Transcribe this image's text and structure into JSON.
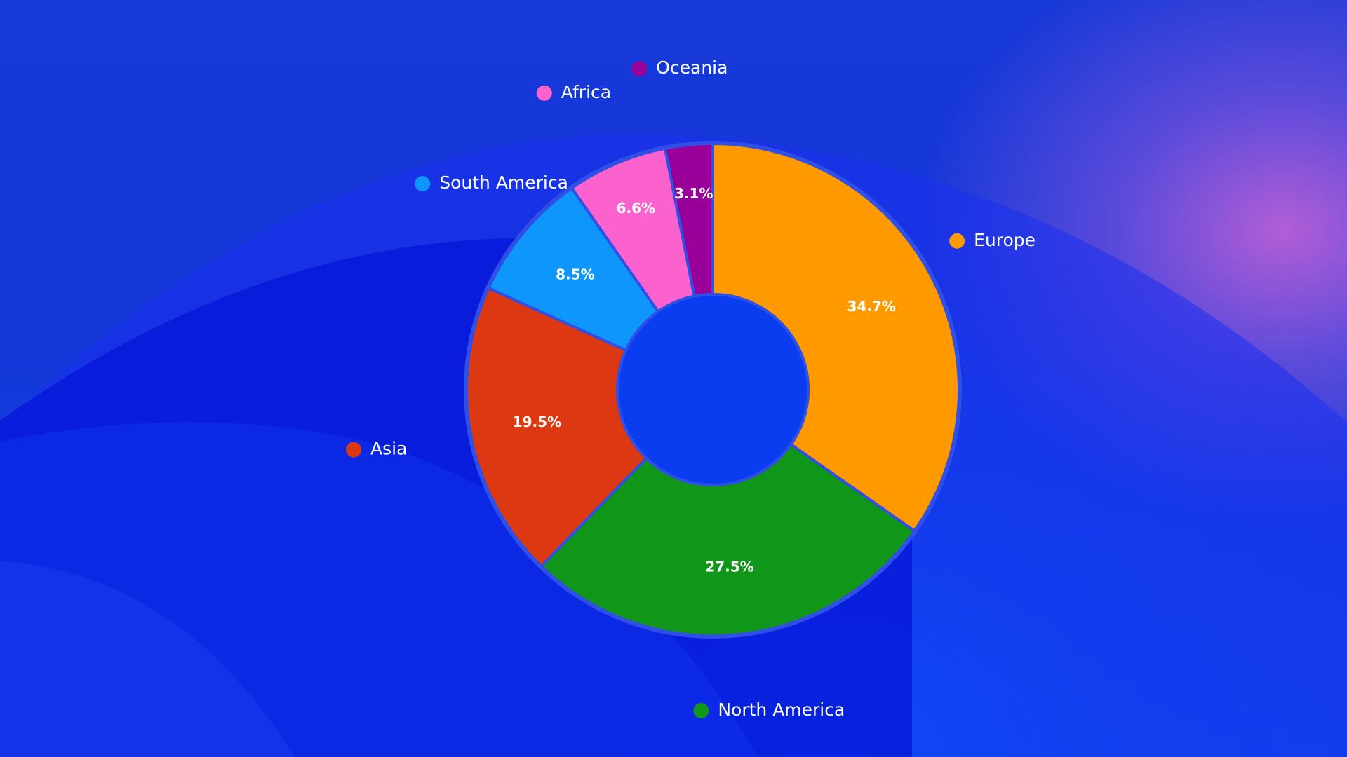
{
  "chart_data": {
    "type": "pie",
    "variant": "donut",
    "title": "",
    "legend_placement": "around the chart, next to each slice",
    "slices": [
      {
        "label": "Europe",
        "value": 34.7,
        "value_label": "34.7%",
        "color": "#ff9900"
      },
      {
        "label": "North America",
        "value": 27.5,
        "value_label": "27.5%",
        "color": "#109618"
      },
      {
        "label": "Asia",
        "value": 19.5,
        "value_label": "19.5%",
        "color": "#dc3912"
      },
      {
        "label": "South America",
        "value": 8.5,
        "value_label": "8.5%",
        "color": "#0e96fa"
      },
      {
        "label": "Africa",
        "value": 6.6,
        "value_label": "6.6%",
        "color": "#fc62ce"
      },
      {
        "label": "Oceania",
        "value": 3.1,
        "value_label": "3.1%",
        "color": "#990099"
      }
    ]
  },
  "colors": {
    "background_primary": "#1437d8",
    "background_accent": "#b65fd6",
    "slice_border": "#2f4fe6",
    "donut_hole": "#0a3cf0",
    "text": "#ffffff"
  }
}
